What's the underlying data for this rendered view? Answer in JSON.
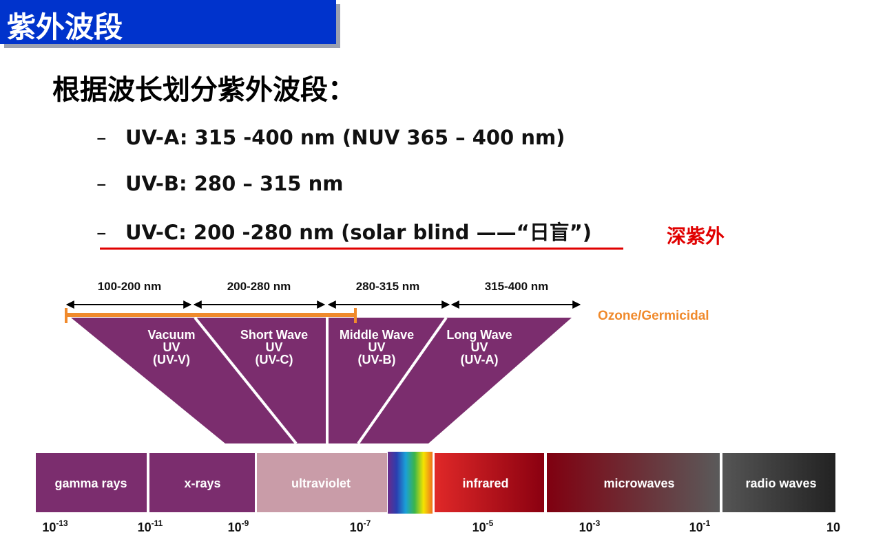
{
  "title": "紫外波段",
  "heading": "根据波长划分紫外波段：",
  "bullets": [
    {
      "dash": "–",
      "text": "UV-A: 315 -400 nm (NUV 365 – 400 nm)"
    },
    {
      "dash": "–",
      "text": "UV-B: 280 – 315 nm"
    },
    {
      "dash": "–",
      "text": "UV-C: 200 -280 nm (solar blind ——“日盲”)"
    }
  ],
  "annotation": "深紫外",
  "colors": {
    "title_bar": "#0033cc",
    "accent_red": "#e00000",
    "uv_purple": "#7b2d6e",
    "ozone_orange": "#f08a2c"
  },
  "diagram": {
    "ranges": [
      "100-200 nm",
      "200-280 nm",
      "280-315 nm",
      "315-400 nm"
    ],
    "ozone_label": "Ozone/Germicidal",
    "bands": [
      [
        "Vacuum",
        "UV",
        "(UV-V)"
      ],
      [
        "Short Wave",
        "UV",
        "(UV-C)"
      ],
      [
        "Middle Wave",
        "UV",
        "(UV-B)"
      ],
      [
        "Long Wave",
        "UV",
        "(UV-A)"
      ]
    ],
    "spectrum": [
      "gamma rays",
      "x-rays",
      "ultraviolet",
      "infrared",
      "microwaves",
      "radio waves"
    ],
    "ticks": [
      {
        "base": "10",
        "exp": "-13"
      },
      {
        "base": "10",
        "exp": "-11"
      },
      {
        "base": "10",
        "exp": "-9"
      },
      {
        "base": "10",
        "exp": "-7"
      },
      {
        "base": "10",
        "exp": "-5"
      },
      {
        "base": "10",
        "exp": "-3"
      },
      {
        "base": "10",
        "exp": "-1"
      },
      {
        "base": "10",
        "exp": ""
      }
    ]
  }
}
